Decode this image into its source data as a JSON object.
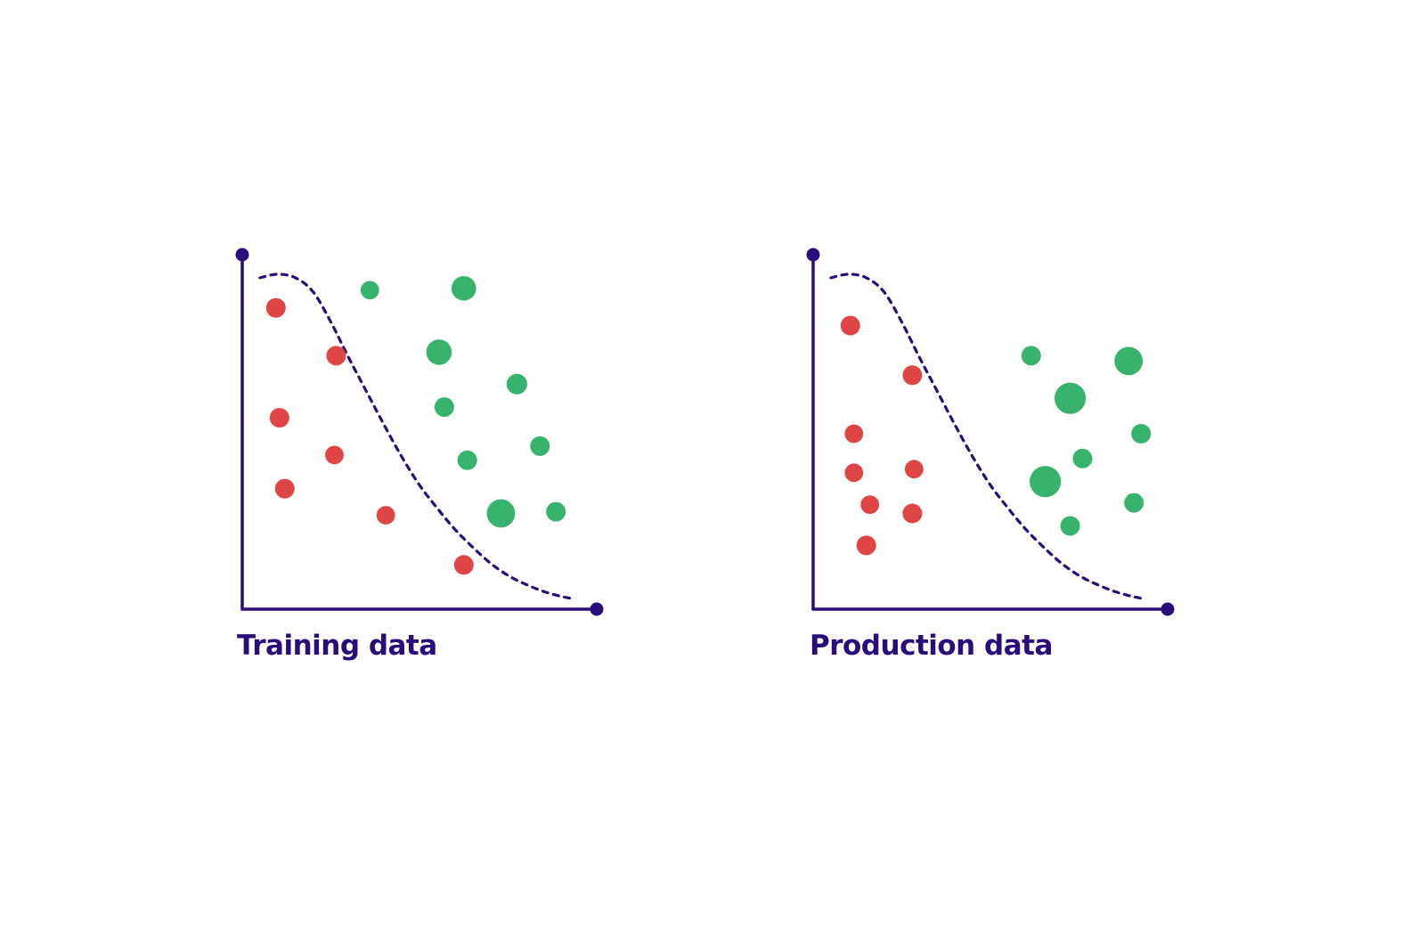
{
  "colors": {
    "axis": "#2a0d7a",
    "boundary": "#2a0d7a",
    "red": "#e04545",
    "green": "#38b36e",
    "title": "#2a0d7a"
  },
  "chart_data": [
    {
      "type": "scatter",
      "title": "Training data",
      "xlabel": "",
      "ylabel": "",
      "grid": false,
      "xlim": [
        0,
        100
      ],
      "ylim": [
        0,
        100
      ],
      "boundary": {
        "style": "dashed",
        "x": [
          5,
          10,
          15,
          20,
          25,
          30,
          35,
          40,
          45,
          50,
          55,
          60,
          65,
          70,
          75,
          80,
          85,
          90,
          93
        ],
        "y": [
          93.5,
          94.5,
          93.5,
          89.5,
          81,
          71,
          61.5,
          52,
          43,
          35,
          28.5,
          22.5,
          17.5,
          13,
          9.5,
          7,
          5,
          3.6,
          3
        ]
      },
      "series": [
        {
          "color": "red",
          "points": [
            {
              "x": 9.5,
              "y": 85,
              "size": 1.0
            },
            {
              "x": 26.5,
              "y": 71.5,
              "size": 1.0
            },
            {
              "x": 10.5,
              "y": 54,
              "size": 1.0
            },
            {
              "x": 26,
              "y": 43.5,
              "size": 0.95
            },
            {
              "x": 12,
              "y": 34,
              "size": 1.0
            },
            {
              "x": 40.5,
              "y": 26.5,
              "size": 0.95
            },
            {
              "x": 62.5,
              "y": 12.5,
              "size": 1.0
            }
          ]
        },
        {
          "color": "green",
          "points": [
            {
              "x": 36,
              "y": 90,
              "size": 0.95
            },
            {
              "x": 62.5,
              "y": 90.5,
              "size": 1.25
            },
            {
              "x": 55.5,
              "y": 72.5,
              "size": 1.3
            },
            {
              "x": 77.5,
              "y": 63.5,
              "size": 1.05
            },
            {
              "x": 57,
              "y": 57,
              "size": 1.0
            },
            {
              "x": 84,
              "y": 46,
              "size": 1.0
            },
            {
              "x": 63.5,
              "y": 42,
              "size": 1.0
            },
            {
              "x": 73,
              "y": 27,
              "size": 1.45
            },
            {
              "x": 88.5,
              "y": 27.5,
              "size": 1.0
            }
          ]
        }
      ]
    },
    {
      "type": "scatter",
      "title": "Production data",
      "xlabel": "",
      "ylabel": "",
      "grid": false,
      "xlim": [
        0,
        100
      ],
      "ylim": [
        0,
        100
      ],
      "boundary": {
        "style": "dashed",
        "x": [
          5,
          10,
          15,
          20,
          25,
          30,
          35,
          40,
          45,
          50,
          55,
          60,
          65,
          70,
          75,
          80,
          85,
          90,
          93
        ],
        "y": [
          93.5,
          94.5,
          93.5,
          89.5,
          81,
          71,
          61.5,
          52,
          43,
          35,
          28.5,
          22.5,
          17.5,
          13,
          9.5,
          7,
          5,
          3.6,
          3
        ]
      },
      "series": [
        {
          "color": "red",
          "points": [
            {
              "x": 10.5,
              "y": 80,
              "size": 1.0
            },
            {
              "x": 28,
              "y": 66,
              "size": 1.0
            },
            {
              "x": 11.5,
              "y": 49.5,
              "size": 0.95
            },
            {
              "x": 28.5,
              "y": 39.5,
              "size": 0.95
            },
            {
              "x": 11.5,
              "y": 38.5,
              "size": 0.95
            },
            {
              "x": 16,
              "y": 29.5,
              "size": 0.95
            },
            {
              "x": 28,
              "y": 27,
              "size": 1.0
            },
            {
              "x": 15,
              "y": 18,
              "size": 1.0
            }
          ]
        },
        {
          "color": "green",
          "points": [
            {
              "x": 61.5,
              "y": 71.5,
              "size": 1.0
            },
            {
              "x": 89,
              "y": 70,
              "size": 1.45
            },
            {
              "x": 72.5,
              "y": 59.5,
              "size": 1.6
            },
            {
              "x": 92.5,
              "y": 49.5,
              "size": 1.0
            },
            {
              "x": 76,
              "y": 42.5,
              "size": 1.0
            },
            {
              "x": 65.5,
              "y": 36,
              "size": 1.6
            },
            {
              "x": 90.5,
              "y": 30,
              "size": 1.0
            },
            {
              "x": 72.5,
              "y": 23.5,
              "size": 1.0
            }
          ]
        }
      ]
    }
  ]
}
